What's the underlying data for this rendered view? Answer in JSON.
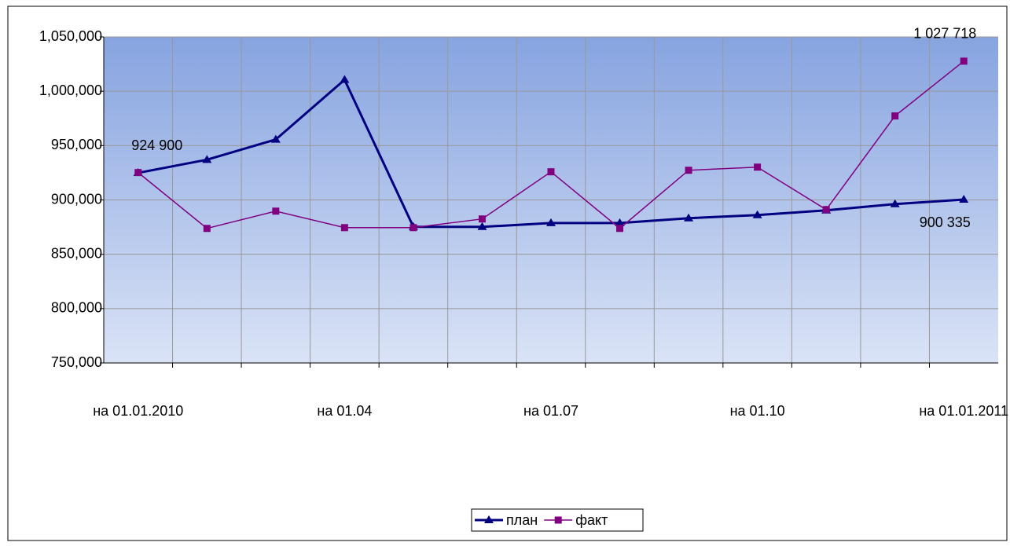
{
  "chart_data": {
    "type": "line",
    "categories": [
      "на 01.01.2010",
      null,
      null,
      "на 01.04",
      null,
      null,
      "на 01.07",
      null,
      null,
      "на 01.10",
      null,
      null,
      "на 01.01.2011"
    ],
    "series": [
      {
        "name": "план",
        "color": "#000080",
        "marker": "triangle",
        "values": [
          924900,
          937000,
          955600,
          1010600,
          875200,
          875200,
          878800,
          878800,
          883200,
          886100,
          890400,
          896200,
          900335
        ],
        "value_labels": [
          "924 900",
          null,
          null,
          null,
          null,
          null,
          null,
          null,
          null,
          null,
          null,
          null,
          "900 335"
        ]
      },
      {
        "name": "факт",
        "color": "#800080",
        "marker": "square",
        "values": [
          925200,
          873800,
          889700,
          874500,
          874500,
          882500,
          925900,
          873800,
          927300,
          930200,
          891100,
          977300,
          1027718
        ],
        "value_labels": [
          null,
          null,
          null,
          null,
          null,
          null,
          null,
          null,
          null,
          null,
          null,
          null,
          "1 027 718"
        ]
      }
    ],
    "ylim": [
      750000,
      1050000
    ],
    "yticks": [
      {
        "value": 750000,
        "label": "750,000"
      },
      {
        "value": 800000,
        "label": "800,000"
      },
      {
        "value": 850000,
        "label": "850,000"
      },
      {
        "value": 900000,
        "label": "900,000"
      },
      {
        "value": 950000,
        "label": "950,000"
      },
      {
        "value": 1000000,
        "label": "1,000,000"
      },
      {
        "value": 1050000,
        "label": "1,050,000"
      }
    ],
    "grid": true,
    "legend": "bottom"
  }
}
